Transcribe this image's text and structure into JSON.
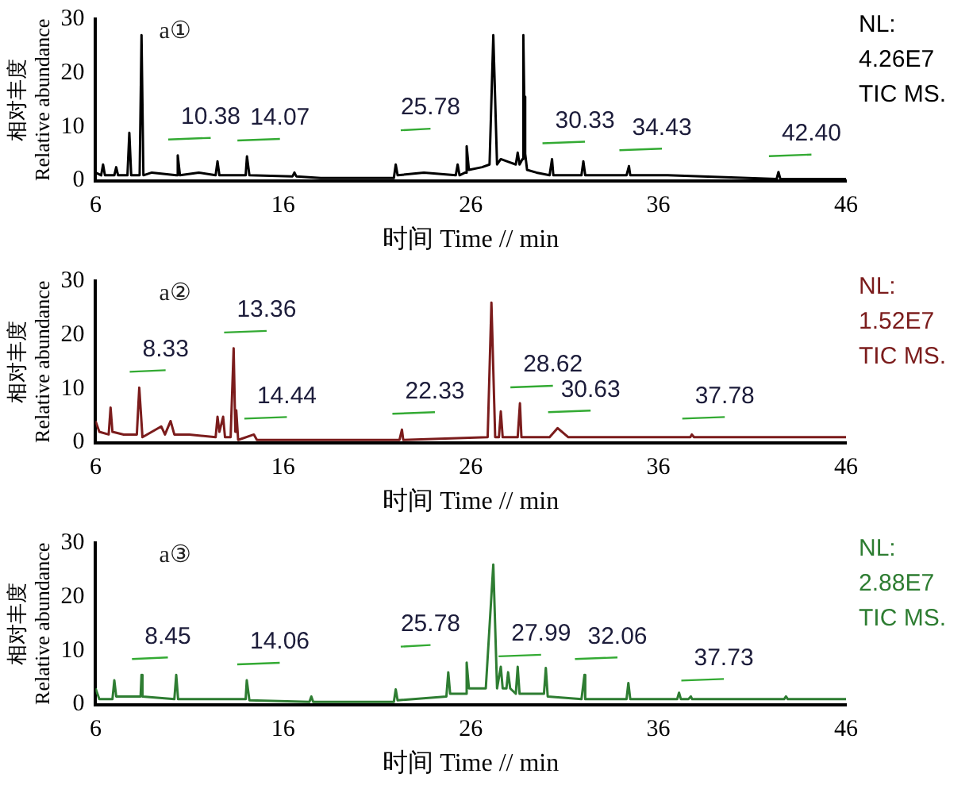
{
  "chart_data": [
    {
      "type": "line",
      "xlabel": "时间 Time // min",
      "ylabel": "相对丰度\nRelative abundance",
      "xlim": [
        6,
        46
      ],
      "xticks": [
        6,
        16,
        26,
        36,
        46
      ],
      "ylim": [
        0,
        30
      ],
      "yticks": [
        0,
        10,
        20,
        30
      ],
      "marker": "none",
      "x": [
        6,
        6.3,
        6.4,
        6.5,
        7.0,
        7.1,
        7.2,
        7.7,
        7.8,
        7.9,
        8.35,
        8.45,
        8.55,
        9.0,
        10.3,
        10.38,
        10.5,
        11.5,
        12.4,
        12.5,
        12.6,
        14.0,
        14.07,
        14.2,
        16.5,
        16.6,
        16.7,
        18,
        21.9,
        22.0,
        22.1,
        23.5,
        25.2,
        25.3,
        25.4,
        25.7,
        25.78,
        25.9,
        26.6,
        27.0,
        27.2,
        27.4,
        27.6,
        28.0,
        28.4,
        28.5,
        28.6,
        28.75,
        28.8,
        28.85,
        28.9,
        29.0,
        29.5,
        30.2,
        30.33,
        30.4,
        31.9,
        32.0,
        32.1,
        34.3,
        34.43,
        34.5,
        36.5,
        42.3,
        42.4,
        42.5,
        46
      ],
      "series": [
        {
          "color": "#000000",
          "values": [
            1.5,
            1,
            3,
            1,
            1,
            2.5,
            1,
            1,
            8.9,
            1,
            1,
            27,
            1,
            1.5,
            1,
            4.7,
            1,
            1.5,
            1,
            3.6,
            1,
            1,
            4.5,
            1,
            0.8,
            1.5,
            0.8,
            0.5,
            0.5,
            3,
            1,
            1.5,
            1,
            3,
            1,
            1.5,
            6.4,
            2,
            2.5,
            3,
            27,
            3,
            4,
            3.5,
            3,
            5.2,
            3,
            4,
            27,
            15.6,
            5,
            2,
            1.5,
            1,
            4,
            1,
            1,
            3.6,
            1,
            1,
            2.7,
            1,
            1,
            0.3,
            1.6,
            0.3,
            0.3
          ]
        }
      ],
      "annotations": [
        "a①",
        "NL:",
        "4.26E7",
        "TIC MS.",
        {
          "text": "10.38",
          "x": 10.38,
          "y": 4.7
        },
        {
          "text": "14.07",
          "x": 14.07,
          "y": 4.5
        },
        {
          "text": "25.78",
          "x": 25.78,
          "y": 6.4
        },
        {
          "text": "30.33",
          "x": 30.33,
          "y": 4
        },
        {
          "text": "34.43",
          "x": 34.43,
          "y": 2.7
        },
        {
          "text": "42.40",
          "x": 42.4,
          "y": 1.6
        }
      ]
    },
    {
      "type": "line",
      "xlabel": "时间 Time // min",
      "ylabel": "相对丰度\nRelative abundance",
      "xlim": [
        6,
        46
      ],
      "xticks": [
        6,
        16,
        26,
        36,
        46
      ],
      "ylim": [
        0,
        30
      ],
      "yticks": [
        0,
        10,
        20,
        30
      ],
      "marker": "none",
      "x": [
        6,
        6.2,
        6.7,
        6.8,
        6.9,
        7.5,
        8.2,
        8.33,
        8.5,
        9.5,
        9.7,
        10.0,
        10.2,
        11.0,
        12.4,
        12.5,
        12.6,
        12.8,
        12.9,
        13.2,
        13.36,
        13.45,
        13.5,
        13.6,
        14.44,
        14.6,
        22.2,
        22.33,
        22.4,
        26.9,
        27.1,
        27.3,
        27.5,
        27.6,
        27.7,
        28.5,
        28.62,
        28.7,
        30.2,
        30.63,
        31.2,
        37.7,
        37.78,
        37.9,
        46
      ],
      "series": [
        {
          "color": "#7b1c1c",
          "values": [
            4,
            2,
            1.5,
            6.5,
            2,
            1.5,
            1.5,
            10.2,
            1,
            3,
            1.5,
            4,
            1.5,
            1.5,
            1,
            4.8,
            2,
            4.8,
            1,
            1,
            17.5,
            2,
            6,
            0.5,
            1.5,
            0.5,
            0.5,
            2.4,
            0.5,
            1,
            26,
            1,
            1,
            5.8,
            1,
            1,
            7.3,
            1,
            1,
            2.7,
            1,
            1,
            1.5,
            1,
            1
          ]
        }
      ],
      "annotations": [
        "a②",
        "NL:",
        "1.52E7",
        "TIC MS.",
        {
          "text": "8.33",
          "x": 8.33,
          "y": 10.2
        },
        {
          "text": "13.36",
          "x": 13.36,
          "y": 17.5
        },
        {
          "text": "14.44",
          "x": 14.44,
          "y": 1.5
        },
        {
          "text": "22.33",
          "x": 22.33,
          "y": 2.4
        },
        {
          "text": "28.62",
          "x": 28.62,
          "y": 7.3
        },
        {
          "text": "30.63",
          "x": 30.63,
          "y": 2.7
        },
        {
          "text": "37.78",
          "x": 37.78,
          "y": 1.5
        }
      ]
    },
    {
      "type": "line",
      "xlabel": "时间 Time // min",
      "ylabel": "相对丰度\nRelative abundance",
      "xlim": [
        6,
        46
      ],
      "xticks": [
        6,
        16,
        26,
        36,
        46
      ],
      "ylim": [
        0,
        30
      ],
      "yticks": [
        0,
        10,
        20,
        30
      ],
      "marker": "none",
      "x": [
        6,
        6.2,
        6.9,
        7.0,
        7.1,
        8.4,
        8.45,
        8.5,
        10.2,
        10.3,
        10.4,
        14.0,
        14.06,
        14.2,
        17.4,
        17.5,
        17.6,
        21.9,
        22.0,
        22.1,
        24.7,
        24.8,
        24.9,
        25.7,
        25.78,
        25.9,
        26.8,
        27.2,
        27.4,
        27.6,
        27.7,
        27.9,
        27.99,
        28.1,
        28.4,
        28.5,
        28.6,
        29.9,
        30.0,
        30.1,
        31.9,
        32.06,
        32.1,
        34.3,
        34.4,
        34.5,
        37.0,
        37.1,
        37.2,
        37.6,
        37.73,
        37.8,
        42.7,
        42.8,
        42.9,
        46
      ],
      "series": [
        {
          "color": "#2e7d32",
          "values": [
            3,
            1,
            1,
            4.5,
            1.5,
            1.5,
            5.5,
            1.5,
            1,
            5.5,
            1,
            1,
            4.5,
            0.8,
            0.5,
            1.5,
            0.5,
            0.5,
            2.8,
            0.8,
            1.5,
            6,
            2,
            2,
            7.8,
            3,
            3,
            26,
            3,
            7,
            3,
            3,
            6,
            3,
            2,
            7,
            2,
            2,
            6.8,
            1.5,
            1,
            5.5,
            1,
            1,
            4,
            1,
            1,
            2.2,
            1,
            1,
            1.5,
            1,
            1,
            1.5,
            1,
            1
          ]
        }
      ],
      "annotations": [
        "a③",
        "NL:",
        "2.88E7",
        "TIC MS.",
        {
          "text": "8.45",
          "x": 8.45,
          "y": 5.5
        },
        {
          "text": "14.06",
          "x": 14.06,
          "y": 4.5
        },
        {
          "text": "25.78",
          "x": 25.78,
          "y": 7.8
        },
        {
          "text": "27.99",
          "x": 27.99,
          "y": 6
        },
        {
          "text": "32.06",
          "x": 32.06,
          "y": 5.5
        },
        {
          "text": "37.73",
          "x": 37.73,
          "y": 1.5
        }
      ]
    }
  ]
}
